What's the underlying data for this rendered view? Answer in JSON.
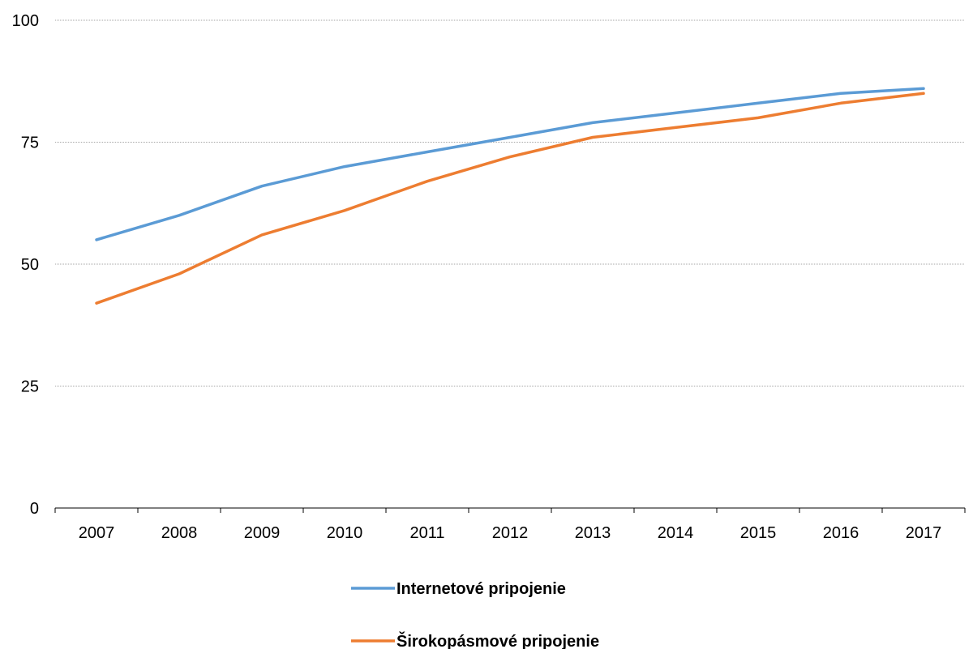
{
  "chart_data": {
    "type": "line",
    "title": "",
    "xlabel": "",
    "ylabel": "",
    "categories": [
      "2007",
      "2008",
      "2009",
      "2010",
      "2011",
      "2012",
      "2013",
      "2014",
      "2015",
      "2016",
      "2017"
    ],
    "ylim": [
      0,
      100
    ],
    "yticks": [
      "0",
      "25",
      "50",
      "75",
      "100"
    ],
    "grid": true,
    "legend_position": "bottom",
    "series": [
      {
        "name": "Internetové pripojenie",
        "color": "#5b9bd5",
        "values": [
          55,
          60,
          66,
          70,
          73,
          76,
          79,
          81,
          83,
          85,
          86
        ]
      },
      {
        "name": "Širokopásmové pripojenie",
        "color": "#ed7d31",
        "values": [
          42,
          48,
          56,
          61,
          67,
          72,
          76,
          78,
          80,
          83,
          85
        ]
      }
    ]
  }
}
